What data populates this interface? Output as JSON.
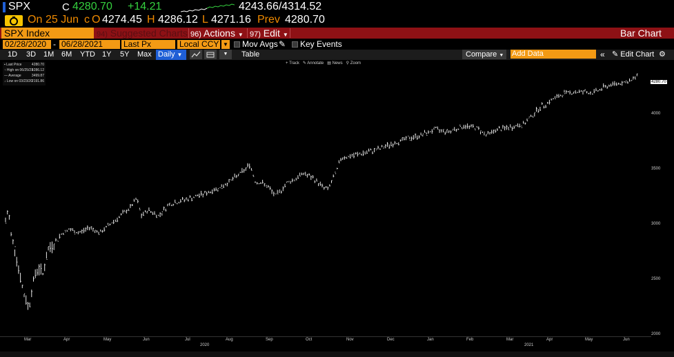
{
  "header": {
    "ticker": "SPX",
    "c_label": "C",
    "last": "4280.70",
    "change": "+14.21",
    "range": "4243.66/4314.52"
  },
  "quote": {
    "on": "On",
    "date": "25 Jun",
    "c": "c",
    "o_label": "O",
    "open": "4274.45",
    "h_label": "H",
    "high": "4286.12",
    "l_label": "L",
    "low": "4271.16",
    "prev_label": "Prev",
    "prev": "4280.70"
  },
  "menubar": {
    "security": "SPX Index",
    "suggested_num": "94)",
    "suggested": "Suggested Charts",
    "actions_num": "96)",
    "actions": "Actions",
    "edit_num": "97)",
    "edit": "Edit",
    "chart_type": "Bar Chart"
  },
  "controls": {
    "start_date": "02/28/2020",
    "dash": "-",
    "end_date": "06/28/2021",
    "field": "Last Px",
    "currency": "Local CCY",
    "mov_avgs": "Mov Avgs",
    "key_events": "Key Events"
  },
  "toolbar": {
    "periods": [
      "1D",
      "3D",
      "1M",
      "6M",
      "YTD",
      "1Y",
      "5Y",
      "Max"
    ],
    "frequency": "Daily",
    "table": "Table",
    "compare": "Compare",
    "add_data_placeholder": "Add Data",
    "edit_chart": "Edit Chart"
  },
  "legend": {
    "rows": [
      {
        "label": "Last Price",
        "value": "4280.70"
      },
      {
        "label": "High on 06/25/21",
        "value": "4286.12"
      },
      {
        "label": "Average",
        "value": "3499.87"
      },
      {
        "label": "Low on 03/23/20",
        "value": "2191.86"
      }
    ]
  },
  "chart_tools": {
    "track": "Track",
    "annotate": "Annotate",
    "news": "News",
    "zoom": "Zoom"
  },
  "colors": {
    "up": "#35d13f",
    "accent_orange": "#f39a14",
    "menubar_red": "#8e1115",
    "selected_blue": "#1f5fd6"
  },
  "chart_data": {
    "type": "bar",
    "series": [
      {
        "name": "SPX Index",
        "x": [
          "Mar",
          "Apr",
          "May",
          "Jun",
          "Jul",
          "Aug",
          "Sep",
          "Oct",
          "Nov",
          "Dec",
          "Jan",
          "Feb",
          "Mar",
          "Apr",
          "May",
          "Jun"
        ],
        "values": [
          2900,
          2850,
          2950,
          3100,
          3250,
          3450,
          3350,
          3400,
          3600,
          3720,
          3800,
          3900,
          3900,
          4150,
          4200,
          4280.7
        ]
      }
    ],
    "x_months": [
      "Mar",
      "Apr",
      "May",
      "Jun",
      "Jul",
      "Aug",
      "Sep",
      "Oct",
      "Nov",
      "Dec",
      "Jan",
      "Feb",
      "Mar",
      "Apr",
      "May",
      "Jun"
    ],
    "x_years": [
      "2020",
      "2021"
    ],
    "y_ticks": [
      "4000",
      "3500",
      "3000",
      "2500",
      "2000"
    ],
    "last_value_label": "4280.70",
    "ylim": [
      2000,
      4400
    ],
    "grid": false
  }
}
